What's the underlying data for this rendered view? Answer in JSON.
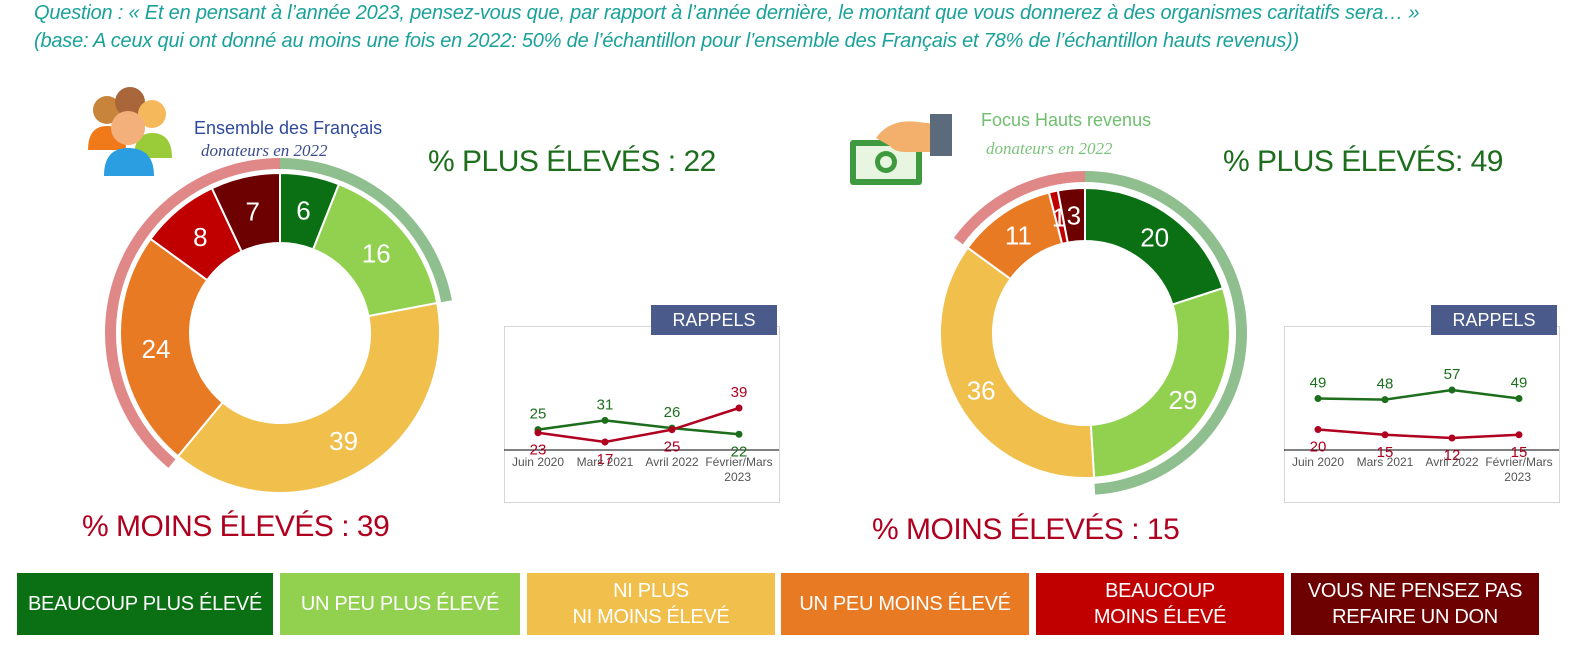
{
  "question": {
    "line1": "Question : « Et en pensant à l’année 2023, pensez-vous que, par rapport à l’année dernière, le montant que vous donnerez à des organismes caritatifs sera… »",
    "line2": "(base: A ceux qui ont donné au moins une fois en 2022: 50% de l’échantillon pour l’ensemble des Français et 78% de l’échantillon hauts revenus))"
  },
  "groups": [
    {
      "title": "Ensemble des Français",
      "subtitle": "donateurs en 2022",
      "plus_text": "% PLUS ÉLEVÉS : 22",
      "moins_text": "% MOINS ÉLEVÉS : 39",
      "icon": "people-icon"
    },
    {
      "title": "Focus Hauts revenus",
      "subtitle": "donateurs en 2022",
      "plus_text": "% PLUS ÉLEVÉS: 49",
      "moins_text": "% MOINS ÉLEVÉS  : 15",
      "icon": "money-hand-icon"
    }
  ],
  "rappels_label": "RAPPELS",
  "legend": [
    {
      "label": "BEAUCOUP PLUS ÉLEVÉ",
      "color": "#0b7014"
    },
    {
      "label": "UN PEU PLUS ÉLEVÉ",
      "color": "#92d050"
    },
    {
      "label": "NI PLUS\nNI MOINS ÉLEVÉ",
      "color": "#f0bf4c"
    },
    {
      "label": "UN PEU MOINS ÉLEVÉ",
      "color": "#e87a24"
    },
    {
      "label": "BEAUCOUP\nMOINS ÉLEVÉ",
      "color": "#c00000"
    },
    {
      "label": "VOUS NE PENSEZ PAS\nREFAIRE UN DON",
      "color": "#6d0000"
    }
  ],
  "colors": {
    "plus": "#1c6e1c",
    "moins": "#b00020",
    "ring_plus": "#8fbf8f",
    "ring_moins": "#e08888",
    "series_plus": "#1c6e1c",
    "series_moins": "#b00020"
  },
  "chart_data": [
    {
      "type": "pie",
      "subtype": "donut",
      "name": "Ensemble des Français",
      "categories": [
        "BEAUCOUP PLUS ÉLEVÉ",
        "UN PEU PLUS ÉLEVÉ",
        "NI PLUS NI MOINS ÉLEVÉ",
        "UN PEU MOINS ÉLEVÉ",
        "BEAUCOUP MOINS ÉLEVÉ",
        "VOUS NE PENSEZ PAS REFAIRE UN DON"
      ],
      "values": [
        6,
        16,
        39,
        24,
        8,
        7
      ]
    },
    {
      "type": "line",
      "name": "RAPPELS Ensemble des Français",
      "categories": [
        "Juin 2020",
        "Mars 2021",
        "Avril 2022",
        "Février/Mars 2023"
      ],
      "series": [
        {
          "values": [
            25,
            31,
            26,
            22
          ]
        },
        {
          "values": [
            23,
            17,
            25,
            39
          ]
        }
      ]
    },
    {
      "type": "pie",
      "subtype": "donut",
      "name": "Focus Hauts revenus",
      "categories": [
        "BEAUCOUP PLUS ÉLEVÉ",
        "UN PEU PLUS ÉLEVÉ",
        "NI PLUS NI MOINS ÉLEVÉ",
        "UN PEU MOINS ÉLEVÉ",
        "BEAUCOUP MOINS ÉLEVÉ",
        "VOUS NE PENSEZ PAS REFAIRE UN DON"
      ],
      "values": [
        20,
        29,
        36,
        11,
        1,
        3
      ]
    },
    {
      "type": "line",
      "name": "RAPPELS Focus Hauts revenus",
      "categories": [
        "Juin 2020",
        "Mars 2021",
        "Avril 2022",
        "Février/Mars 2023"
      ],
      "series": [
        {
          "values": [
            49,
            48,
            57,
            49
          ]
        },
        {
          "values": [
            20,
            15,
            12,
            15
          ]
        }
      ]
    }
  ]
}
